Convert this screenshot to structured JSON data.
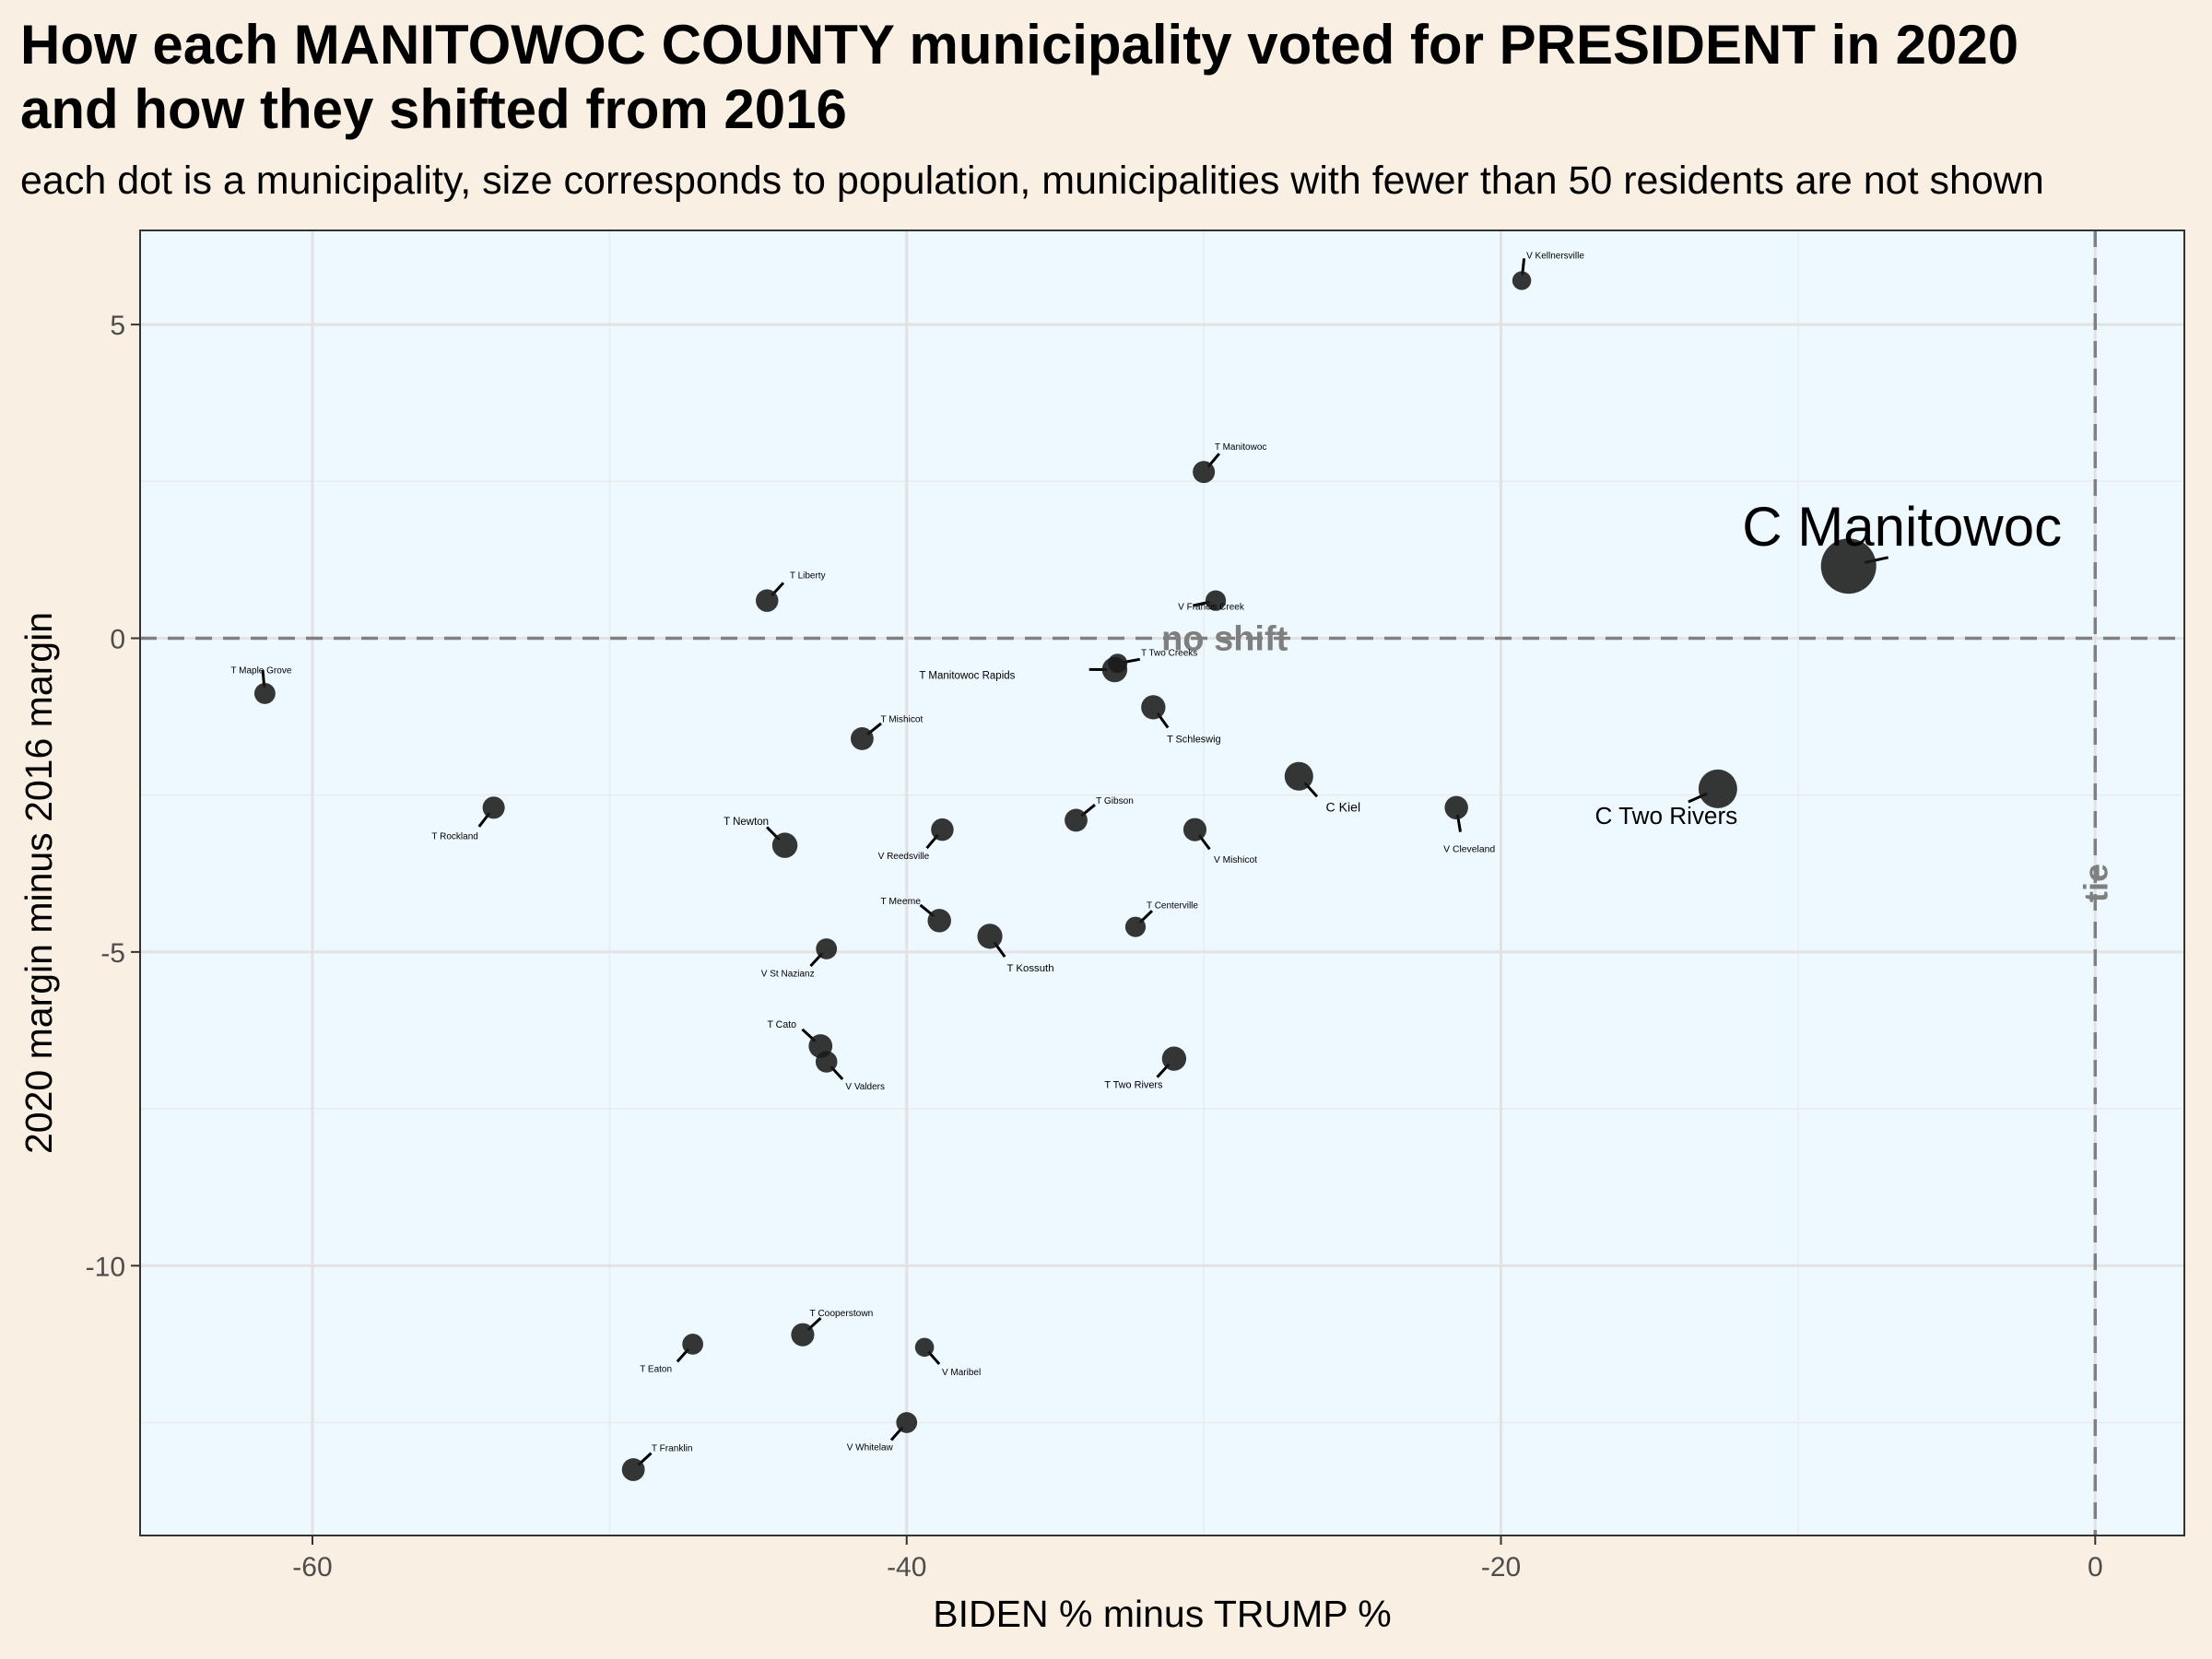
{
  "header": {
    "title_line1": "How each MANITOWOC COUNTY municipality voted for PRESIDENT in 2020",
    "title_line2": "and how they shifted from 2016",
    "subtitle": "each dot is a municipality, size corresponds to population, municipalities with fewer than 50 residents are not shown"
  },
  "chart_data": {
    "type": "scatter",
    "xlabel": "BIDEN % minus TRUMP %",
    "ylabel": "2020 margin minus 2016 margin",
    "xlim": [
      -65.8,
      3.0
    ],
    "ylim": [
      -14.3,
      6.5
    ],
    "xticks": [
      -60,
      -40,
      -20,
      0
    ],
    "xtick_labels": [
      "-60",
      "-40",
      "-20",
      "0"
    ],
    "yticks": [
      5,
      0,
      -5,
      -10
    ],
    "ytick_labels": [
      "5",
      "0",
      "-5",
      "-10"
    ],
    "grid": true,
    "panel_background": "#eef8ff",
    "point_color": "#1a1a1a",
    "reference_lines": [
      {
        "axis": "y",
        "value": 0,
        "label": "no shift"
      },
      {
        "axis": "x",
        "value": 0,
        "label": "tie"
      }
    ],
    "points": [
      {
        "name": "V Kellnersville",
        "x": -19.3,
        "y": 5.7,
        "pop": 330
      },
      {
        "name": "T Manitowoc",
        "x": -30.0,
        "y": 2.65,
        "pop": 1080
      },
      {
        "name": "C Manitowoc",
        "x": -8.3,
        "y": 1.15,
        "pop": 32500
      },
      {
        "name": "T Liberty",
        "x": -44.7,
        "y": 0.6,
        "pop": 1200
      },
      {
        "name": "V Francis Creek",
        "x": -29.6,
        "y": 0.6,
        "pop": 660
      },
      {
        "name": "T Two Creeks",
        "x": -32.9,
        "y": -0.4,
        "pop": 430
      },
      {
        "name": "T Manitowoc Rapids",
        "x": -33.0,
        "y": -0.5,
        "pop": 2200
      },
      {
        "name": "T Maple Grove",
        "x": -61.6,
        "y": -0.88,
        "pop": 790
      },
      {
        "name": "T Mishicot",
        "x": -41.5,
        "y": -1.6,
        "pop": 1300
      },
      {
        "name": "T Schleswig",
        "x": -31.7,
        "y": -1.1,
        "pop": 1800
      },
      {
        "name": "C Kiel",
        "x": -26.8,
        "y": -2.2,
        "pop": 3800
      },
      {
        "name": "C Two Rivers",
        "x": -12.7,
        "y": -2.4,
        "pop": 11300
      },
      {
        "name": "V Cleveland",
        "x": -21.5,
        "y": -2.7,
        "pop": 1500
      },
      {
        "name": "T Rockland",
        "x": -53.9,
        "y": -2.7,
        "pop": 1100
      },
      {
        "name": "T Gibson",
        "x": -34.3,
        "y": -2.9,
        "pop": 1300
      },
      {
        "name": "V Reedsville",
        "x": -38.8,
        "y": -3.05,
        "pop": 1200
      },
      {
        "name": "V Mishicot",
        "x": -30.3,
        "y": -3.05,
        "pop": 1400
      },
      {
        "name": "T Newton",
        "x": -44.1,
        "y": -3.3,
        "pop": 2200
      },
      {
        "name": "T Meeme",
        "x": -38.9,
        "y": -4.5,
        "pop": 1500
      },
      {
        "name": "T Kossuth",
        "x": -37.2,
        "y": -4.75,
        "pop": 2100
      },
      {
        "name": "T Centerville",
        "x": -32.3,
        "y": -4.6,
        "pop": 640
      },
      {
        "name": "V St Nazianz",
        "x": -42.7,
        "y": -4.95,
        "pop": 780
      },
      {
        "name": "T Cato",
        "x": -42.9,
        "y": -6.5,
        "pop": 1600
      },
      {
        "name": "V Valders",
        "x": -42.7,
        "y": -6.75,
        "pop": 960
      },
      {
        "name": "T Two Rivers",
        "x": -31.0,
        "y": -6.7,
        "pop": 1800
      },
      {
        "name": "T Cooperstown",
        "x": -43.5,
        "y": -11.1,
        "pop": 1400
      },
      {
        "name": "T Eaton",
        "x": -47.2,
        "y": -11.25,
        "pop": 760
      },
      {
        "name": "V Maribel",
        "x": -39.4,
        "y": -11.3,
        "pop": 350
      },
      {
        "name": "V Whitelaw",
        "x": -40.0,
        "y": -12.5,
        "pop": 760
      },
      {
        "name": "T Franklin",
        "x": -49.2,
        "y": -13.25,
        "pop": 1300
      }
    ]
  }
}
